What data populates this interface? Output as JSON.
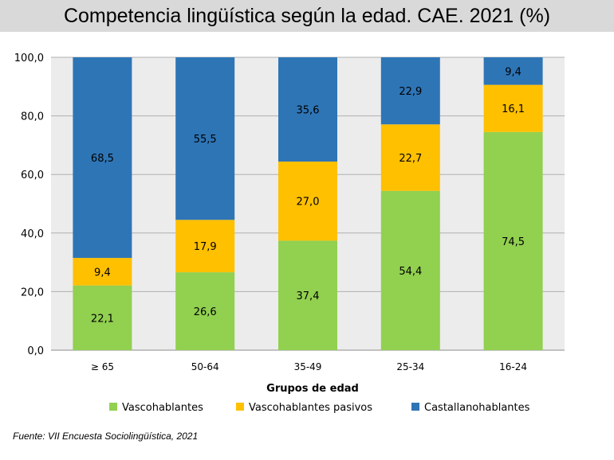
{
  "chart_data": {
    "type": "bar",
    "stacked": true,
    "title": "Competencia lingüística según la edad. CAE. 2021 (%)",
    "xlabel": "Grupos de edad",
    "ylabel": "",
    "ylim": [
      0,
      100
    ],
    "yticks": [
      "0,0",
      "20,0",
      "40,0",
      "60,0",
      "80,0",
      "100,0"
    ],
    "grid": true,
    "legend_position": "bottom",
    "categories": [
      "≥ 65",
      "50-64",
      "35-49",
      "25-34",
      "16-24"
    ],
    "series": [
      {
        "name": "Vascohablantes",
        "color": "#92d050",
        "values": [
          22.1,
          26.6,
          37.4,
          54.4,
          74.5
        ],
        "labels": [
          "22,1",
          "26,6",
          "37,4",
          "54,4",
          "74,5"
        ]
      },
      {
        "name": "Vascohablantes pasivos",
        "color": "#ffc000",
        "values": [
          9.4,
          17.9,
          27.0,
          22.7,
          16.1
        ],
        "labels": [
          "9,4",
          "17,9",
          "27,0",
          "22,7",
          "16,1"
        ]
      },
      {
        "name": "Castallanohablantes",
        "color": "#2e75b6",
        "values": [
          68.5,
          55.5,
          35.6,
          22.9,
          9.4
        ],
        "labels": [
          "68,5",
          "55,5",
          "35,6",
          "22,9",
          "9,4"
        ]
      }
    ]
  },
  "source": "Fuente: VII Encuesta Sociolingüística, 2021",
  "colors": {
    "plot_bg": "#ececec",
    "gridline": "#b0b0b0",
    "title_bg": "#d9d9d9"
  }
}
